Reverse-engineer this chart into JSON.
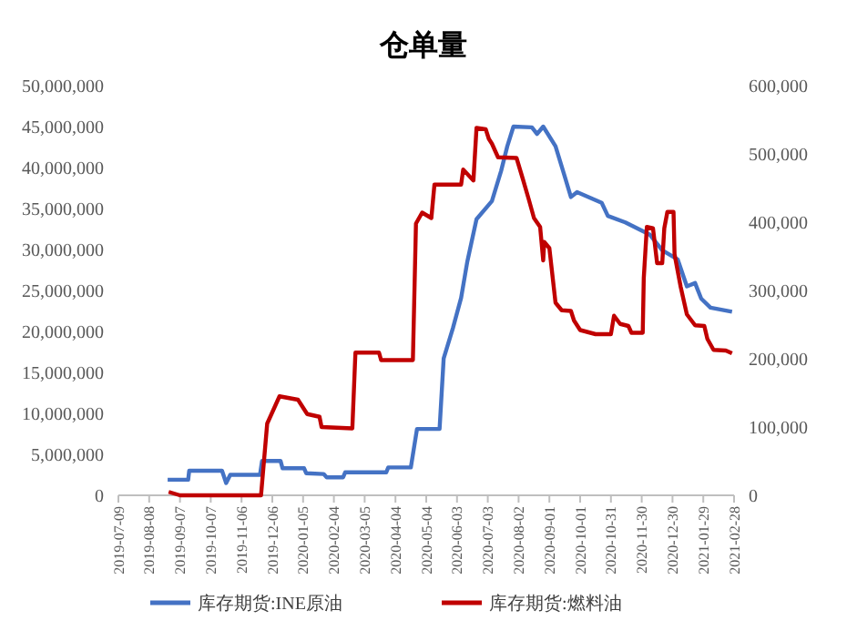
{
  "chart_data": {
    "type": "line",
    "title": "仓单量",
    "xlim": [
      "2019-07-09",
      "2021-02-28"
    ],
    "xticks": [
      "2019-07-09",
      "2019-08-08",
      "2019-09-07",
      "2019-10-07",
      "2019-11-06",
      "2019-12-06",
      "2020-01-05",
      "2020-02-04",
      "2020-03-05",
      "2020-04-04",
      "2020-05-04",
      "2020-06-03",
      "2020-07-03",
      "2020-08-02",
      "2020-09-01",
      "2020-10-01",
      "2020-10-31",
      "2020-11-30",
      "2020-12-30",
      "2021-01-29",
      "2021-02-28"
    ],
    "ylim": [
      0,
      50000000
    ],
    "yticks": [
      0,
      {
        "value": 5000000,
        "label": "5,000,000"
      },
      {
        "value": 10000000,
        "label": "10,000,000"
      },
      {
        "value": 15000000,
        "label": "15,000,000"
      },
      {
        "value": 20000000,
        "label": "20,000,000"
      },
      {
        "value": 25000000,
        "label": "25,000,000"
      },
      {
        "value": 30000000,
        "label": "30,000,000"
      },
      {
        "value": 35000000,
        "label": "35,000,000"
      },
      {
        "value": 40000000,
        "label": "40,000,000"
      },
      {
        "value": 45000000,
        "label": "45,000,000"
      },
      {
        "value": 50000000,
        "label": "50,000,000"
      }
    ],
    "y2lim": [
      0,
      600000
    ],
    "y2ticks": [
      0,
      {
        "value": 100000,
        "label": "100,000"
      },
      {
        "value": 200000,
        "label": "200,000"
      },
      {
        "value": 300000,
        "label": "300,000"
      },
      {
        "value": 400000,
        "label": "400,000"
      },
      {
        "value": 500000,
        "label": "500,000"
      },
      {
        "value": 600000,
        "label": "600,000"
      }
    ],
    "grid": false,
    "legend": "bottom",
    "line_style": "solid",
    "series": [
      {
        "name": "库存期货:INE原油",
        "color": "#4472c4",
        "axis": "y",
        "x": [
          "2019-08-26",
          "2019-09-15",
          "2019-09-16",
          "2019-10-18",
          "2019-10-22",
          "2019-10-26",
          "2019-11-24",
          "2019-11-26",
          "2019-12-14",
          "2019-12-16",
          "2020-01-06",
          "2020-01-08",
          "2020-01-25",
          "2020-01-28",
          "2020-02-13",
          "2020-02-15",
          "2020-03-26",
          "2020-03-28",
          "2020-04-19",
          "2020-04-25",
          "2020-05-17",
          "2020-05-21",
          "2020-05-30",
          "2020-06-07",
          "2020-06-13",
          "2020-06-22",
          "2020-07-07",
          "2020-07-16",
          "2020-07-22",
          "2020-07-28",
          "2020-08-15",
          "2020-08-20",
          "2020-08-26",
          "2020-09-07",
          "2020-09-16",
          "2020-09-22",
          "2020-09-28",
          "2020-10-22",
          "2020-10-28",
          "2020-11-14",
          "2020-12-08",
          "2020-12-20",
          "2021-01-04",
          "2021-01-13",
          "2021-01-21",
          "2021-01-27",
          "2021-02-05",
          "2021-02-26"
        ],
        "values": [
          1900000,
          1900000,
          3000000,
          3000000,
          1500000,
          2500000,
          2500000,
          4200000,
          4200000,
          3300000,
          3300000,
          2700000,
          2600000,
          2200000,
          2200000,
          2800000,
          2800000,
          3400000,
          3400000,
          8100000,
          8100000,
          16700000,
          20400000,
          24100000,
          28500000,
          33700000,
          35900000,
          39600000,
          42600000,
          45000000,
          44900000,
          44100000,
          45000000,
          42600000,
          38900000,
          36400000,
          37000000,
          35700000,
          34100000,
          33300000,
          31800000,
          29900000,
          28800000,
          25500000,
          25900000,
          24000000,
          22900000,
          22400000
        ]
      },
      {
        "name": "库存期货:燃料油",
        "color": "#c00000",
        "axis": "y2",
        "x": [
          "2019-08-27",
          "2019-09-07",
          "2019-11-25",
          "2019-12-01",
          "2019-12-13",
          "2019-12-31",
          "2020-01-09",
          "2020-01-21",
          "2020-01-23",
          "2020-02-22",
          "2020-02-25",
          "2020-03-19",
          "2020-03-21",
          "2020-04-21",
          "2020-04-24",
          "2020-04-30",
          "2020-05-09",
          "2020-05-12",
          "2020-06-07",
          "2020-06-09",
          "2020-06-19",
          "2020-06-22",
          "2020-07-01",
          "2020-07-04",
          "2020-07-07",
          "2020-07-13",
          "2020-07-31",
          "2020-08-06",
          "2020-08-12",
          "2020-08-17",
          "2020-08-23",
          "2020-08-26",
          "2020-08-27",
          "2020-09-01",
          "2020-09-07",
          "2020-09-13",
          "2020-09-22",
          "2020-09-25",
          "2020-10-01",
          "2020-10-16",
          "2020-10-31",
          "2020-11-03",
          "2020-11-09",
          "2020-11-17",
          "2020-11-20",
          "2020-12-01",
          "2020-12-02",
          "2020-12-05",
          "2020-12-11",
          "2020-12-15",
          "2020-12-20",
          "2020-12-22",
          "2020-12-25",
          "2020-12-31",
          "2021-01-01",
          "2021-01-07",
          "2021-01-13",
          "2021-01-21",
          "2021-01-30",
          "2021-02-02",
          "2021-02-08",
          "2021-02-20",
          "2021-02-26"
        ],
        "values": [
          5000,
          0,
          0,
          105000,
          145000,
          140000,
          119000,
          115000,
          100000,
          98000,
          209000,
          209000,
          198000,
          198000,
          398000,
          414000,
          406000,
          455000,
          455000,
          477000,
          461000,
          538000,
          536000,
          522000,
          515000,
          495000,
          494000,
          464000,
          433000,
          406000,
          393000,
          344000,
          371000,
          362000,
          282000,
          271000,
          270000,
          256000,
          242000,
          236000,
          236000,
          263000,
          251000,
          248000,
          238000,
          238000,
          318000,
          393000,
          391000,
          340000,
          340000,
          391000,
          415000,
          415000,
          353000,
          305000,
          265000,
          249000,
          248000,
          229000,
          213000,
          212000,
          208000
        ]
      }
    ]
  }
}
